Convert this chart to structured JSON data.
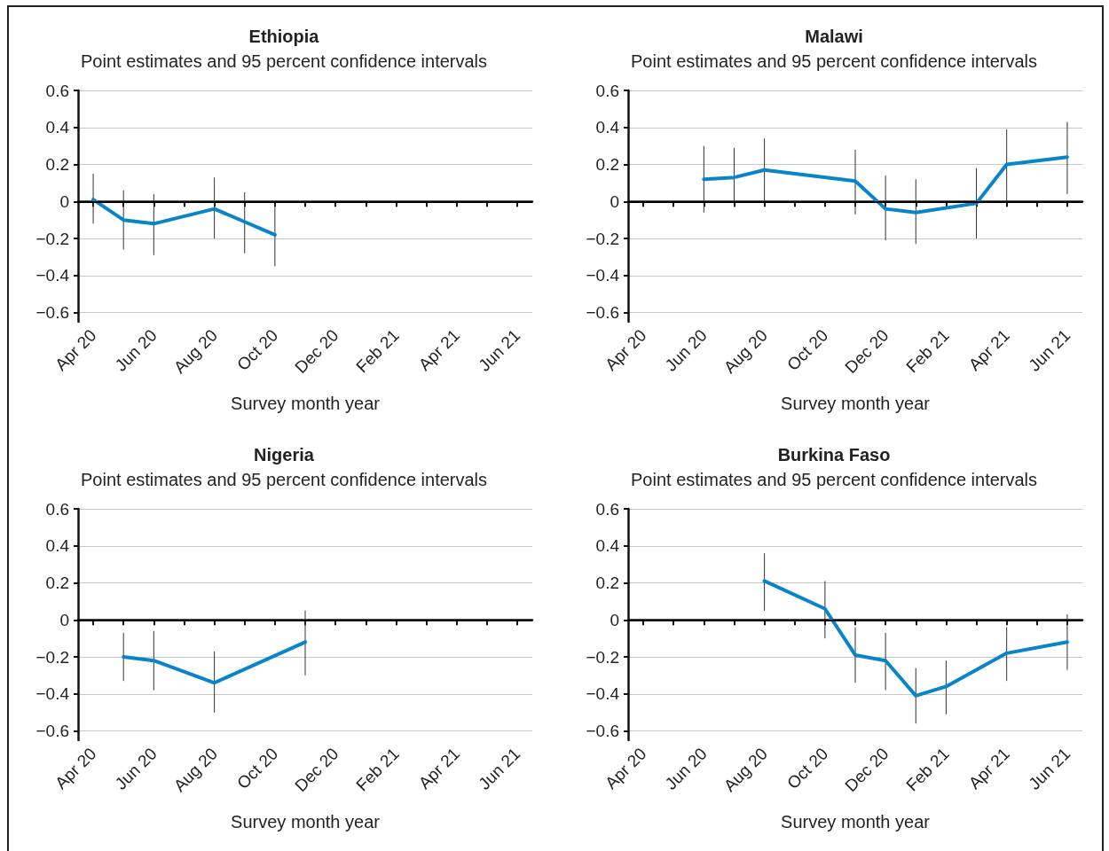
{
  "chart_data": [
    {
      "type": "line",
      "title": "Ethiopia",
      "subtitle": "Point estimates and 95 percent confidence intervals",
      "xlabel": "Survey month year",
      "categories": [
        "Apr 20",
        null,
        "Jun 20",
        null,
        "Aug 20",
        null,
        "Oct 20",
        null,
        "Dec 20",
        null,
        "Feb 21",
        null,
        "Apr 21",
        null,
        "Jun 21"
      ],
      "series": [
        {
          "color": "#0a84c8",
          "values": [
            0.01,
            -0.1,
            -0.12,
            null,
            -0.04,
            -0.11,
            -0.18,
            null,
            null,
            null,
            null,
            null,
            null,
            null,
            null
          ],
          "errors": [
            [
              -0.12,
              0.15
            ],
            [
              -0.26,
              0.06
            ],
            [
              -0.29,
              0.04
            ],
            null,
            [
              -0.2,
              0.13
            ],
            [
              -0.28,
              0.05
            ],
            [
              -0.35,
              -0.02
            ],
            null,
            null,
            null,
            null,
            null,
            null,
            null,
            null
          ]
        }
      ],
      "ylim": [
        -0.65,
        0.6
      ],
      "yticks": [
        {
          "value": -0.6,
          "label": "−0.6"
        },
        {
          "value": -0.4,
          "label": "−0.4"
        },
        {
          "value": -0.2,
          "label": "−0.2"
        },
        0,
        0.2,
        0.4,
        0.6
      ],
      "ref_lines": [
        {
          "axis": "y",
          "value": 0,
          "color": "#000000"
        }
      ],
      "grid": "y",
      "marker": "none",
      "line_style": "solid"
    },
    {
      "type": "line",
      "title": "Malawi",
      "subtitle": "Point estimates and 95 percent confidence intervals",
      "xlabel": "Survey month year",
      "categories": [
        "Apr 20",
        null,
        "Jun 20",
        null,
        "Aug 20",
        null,
        "Oct 20",
        null,
        "Dec 20",
        null,
        "Feb 21",
        null,
        "Apr 21",
        null,
        "Jun 21"
      ],
      "series": [
        {
          "color": "#0a84c8",
          "values": [
            null,
            null,
            0.12,
            0.13,
            0.17,
            null,
            null,
            0.11,
            -0.04,
            -0.06,
            null,
            -0.01,
            0.2,
            null,
            0.24
          ],
          "errors": [
            null,
            null,
            [
              -0.06,
              0.3
            ],
            [
              -0.03,
              0.29
            ],
            [
              0.0,
              0.34
            ],
            null,
            null,
            [
              -0.07,
              0.28
            ],
            [
              -0.21,
              0.14
            ],
            [
              -0.23,
              0.12
            ],
            null,
            [
              -0.2,
              0.18
            ],
            [
              0.0,
              0.39
            ],
            null,
            [
              0.04,
              0.43
            ]
          ]
        }
      ],
      "ylim": [
        -0.65,
        0.6
      ],
      "yticks": [
        {
          "value": -0.6,
          "label": "−0.6"
        },
        {
          "value": -0.4,
          "label": "−0.4"
        },
        {
          "value": -0.2,
          "label": "−0.2"
        },
        0,
        0.2,
        0.4,
        0.6
      ],
      "ref_lines": [
        {
          "axis": "y",
          "value": 0,
          "color": "#000000"
        }
      ],
      "grid": "y",
      "marker": "none",
      "line_style": "solid"
    },
    {
      "type": "line",
      "title": "Nigeria",
      "subtitle": "Point estimates and 95 percent confidence intervals",
      "xlabel": "Survey month year",
      "categories": [
        "Apr 20",
        null,
        "Jun 20",
        null,
        "Aug 20",
        null,
        "Oct 20",
        null,
        "Dec 20",
        null,
        "Feb 21",
        null,
        "Apr 21",
        null,
        "Jun 21"
      ],
      "series": [
        {
          "color": "#0a84c8",
          "values": [
            null,
            -0.2,
            -0.22,
            null,
            -0.34,
            null,
            null,
            -0.12,
            null,
            null,
            null,
            null,
            null,
            null,
            null
          ],
          "errors": [
            null,
            [
              -0.33,
              -0.07
            ],
            [
              -0.38,
              -0.06
            ],
            null,
            [
              -0.5,
              -0.17
            ],
            null,
            null,
            [
              -0.3,
              0.05
            ],
            null,
            null,
            null,
            null,
            null,
            null,
            null
          ]
        }
      ],
      "ylim": [
        -0.65,
        0.6
      ],
      "yticks": [
        {
          "value": -0.6,
          "label": "−0.6"
        },
        {
          "value": -0.4,
          "label": "−0.4"
        },
        {
          "value": -0.2,
          "label": "−0.2"
        },
        0,
        0.2,
        0.4,
        0.6
      ],
      "ref_lines": [
        {
          "axis": "y",
          "value": 0,
          "color": "#000000"
        }
      ],
      "grid": "y",
      "marker": "none",
      "line_style": "solid"
    },
    {
      "type": "line",
      "title": "Burkina Faso",
      "subtitle": "Point estimates and 95 percent confidence intervals",
      "xlabel": "Survey month year",
      "categories": [
        "Apr 20",
        null,
        "Jun 20",
        null,
        "Aug 20",
        null,
        "Oct 20",
        null,
        "Dec 20",
        null,
        "Feb 21",
        null,
        "Apr 21",
        null,
        "Jun 21"
      ],
      "series": [
        {
          "color": "#0a84c8",
          "values": [
            null,
            null,
            null,
            null,
            0.21,
            null,
            0.06,
            -0.19,
            -0.22,
            -0.41,
            -0.36,
            null,
            -0.18,
            null,
            -0.12
          ],
          "errors": [
            null,
            null,
            null,
            null,
            [
              0.05,
              0.36
            ],
            null,
            [
              -0.1,
              0.21
            ],
            [
              -0.34,
              -0.04
            ],
            [
              -0.38,
              -0.07
            ],
            [
              -0.56,
              -0.26
            ],
            [
              -0.51,
              -0.22
            ],
            null,
            [
              -0.33,
              -0.04
            ],
            null,
            [
              -0.27,
              0.03
            ]
          ]
        }
      ],
      "ylim": [
        -0.65,
        0.6
      ],
      "yticks": [
        {
          "value": -0.6,
          "label": "−0.6"
        },
        {
          "value": -0.4,
          "label": "−0.4"
        },
        {
          "value": -0.2,
          "label": "−0.2"
        },
        0,
        0.2,
        0.4,
        0.6
      ],
      "ref_lines": [
        {
          "axis": "y",
          "value": 0,
          "color": "#000000"
        }
      ],
      "grid": "y",
      "marker": "none",
      "line_style": "solid"
    }
  ]
}
